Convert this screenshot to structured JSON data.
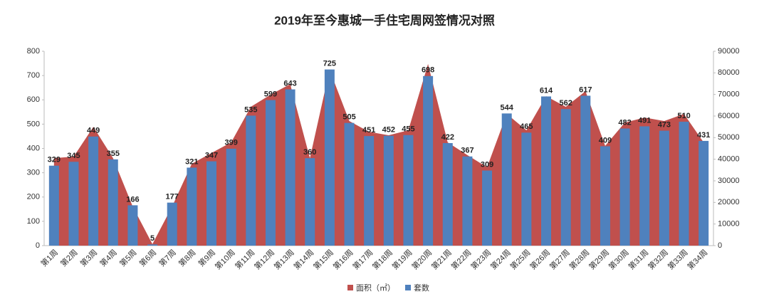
{
  "chart_data": {
    "type": "combo",
    "title": "2019年至今惠城一手住宅周网签情况对照",
    "categories": [
      "第1周",
      "第2周",
      "第3周",
      "第4周",
      "第5周",
      "第6周",
      "第7周",
      "第8周",
      "第9周",
      "第10周",
      "第11周",
      "第12周",
      "第13周",
      "第14周",
      "第15周",
      "第16周",
      "第17周",
      "第18周",
      "第19周",
      "第20周",
      "第21周",
      "第22周",
      "第23周",
      "第24周",
      "第25周",
      "第26周",
      "第27周",
      "第28周",
      "第29周",
      "第30周",
      "第31周",
      "第32周",
      "第33周",
      "第34周"
    ],
    "series": [
      {
        "name": "面积（㎡）",
        "type": "area",
        "axis": "y2",
        "color": "#c0504d",
        "values": [
          40500,
          41200,
          55000,
          40500,
          18100,
          700,
          18100,
          37900,
          42900,
          47800,
          64300,
          69900,
          74800,
          40500,
          81400,
          57700,
          52700,
          51100,
          53400,
          84100,
          47800,
          41900,
          36300,
          61000,
          53400,
          69200,
          64300,
          71500,
          46200,
          57000,
          59300,
          57700,
          61000,
          47800
        ]
      },
      {
        "name": "套数",
        "type": "bar",
        "color": "#4f81bd",
        "values": [
          329,
          345,
          449,
          355,
          166,
          5,
          177,
          321,
          347,
          399,
          535,
          599,
          643,
          360,
          725,
          505,
          451,
          452,
          455,
          698,
          422,
          367,
          309,
          544,
          465,
          614,
          562,
          617,
          409,
          482,
          491,
          473,
          510,
          431
        ]
      }
    ],
    "ylim": [
      0,
      800
    ],
    "yticks": [
      0,
      100,
      200,
      300,
      400,
      500,
      600,
      700,
      800
    ],
    "y2lim": [
      0,
      90000
    ],
    "y2ticks": [
      0,
      10000,
      20000,
      30000,
      40000,
      50000,
      60000,
      70000,
      80000,
      90000
    ]
  }
}
